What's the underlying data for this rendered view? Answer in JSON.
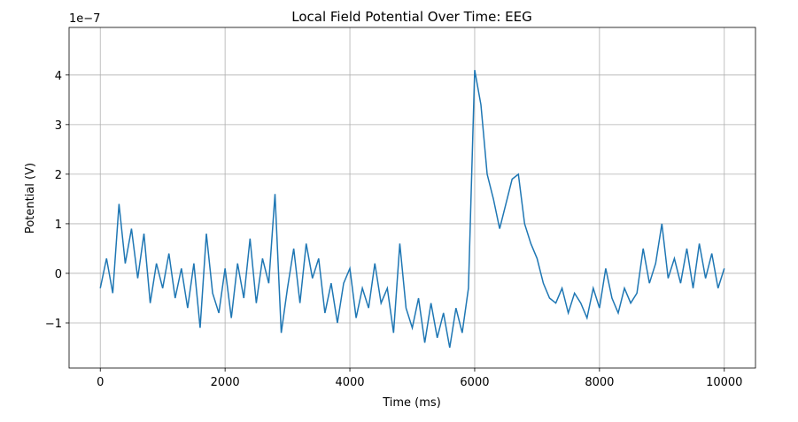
{
  "chart_data": {
    "type": "line",
    "title": "Local Field Potential Over Time: EEG",
    "x_label": "Time (ms)",
    "y_label": "Potential (V)",
    "y_offset_label": "1e−7",
    "x": [
      0,
      100,
      200,
      300,
      400,
      500,
      600,
      700,
      800,
      900,
      1000,
      1100,
      1200,
      1300,
      1400,
      1500,
      1600,
      1700,
      1800,
      1900,
      2000,
      2100,
      2200,
      2300,
      2400,
      2500,
      2600,
      2700,
      2800,
      2900,
      3000,
      3100,
      3200,
      3300,
      3400,
      3500,
      3600,
      3700,
      3800,
      3900,
      4000,
      4100,
      4200,
      4300,
      4400,
      4500,
      4600,
      4700,
      4800,
      4900,
      5000,
      5100,
      5200,
      5300,
      5400,
      5500,
      5600,
      5700,
      5800,
      5900,
      6000,
      6100,
      6200,
      6300,
      6400,
      6500,
      6600,
      6700,
      6800,
      6900,
      7000,
      7100,
      7200,
      7300,
      7400,
      7500,
      7600,
      7700,
      7800,
      7900,
      8000,
      8100,
      8200,
      8300,
      8400,
      8500,
      8600,
      8700,
      8800,
      8900,
      9000,
      9100,
      9200,
      9300,
      9400,
      9500,
      9600,
      9700,
      9800,
      9900,
      10000
    ],
    "series": [
      {
        "name": "EEG",
        "color": "#1f77b4",
        "values": [
          -0.3,
          0.3,
          -0.4,
          1.4,
          0.2,
          0.9,
          -0.1,
          0.8,
          -0.6,
          0.2,
          -0.3,
          0.4,
          -0.5,
          0.1,
          -0.7,
          0.2,
          -1.1,
          0.8,
          -0.4,
          -0.8,
          0.1,
          -0.9,
          0.2,
          -0.5,
          0.7,
          -0.6,
          0.3,
          -0.2,
          1.6,
          -1.2,
          -0.3,
          0.5,
          -0.6,
          0.6,
          -0.1,
          0.3,
          -0.8,
          -0.2,
          -1.0,
          -0.2,
          0.1,
          -0.9,
          -0.3,
          -0.7,
          0.2,
          -0.6,
          -0.3,
          -1.2,
          0.6,
          -0.7,
          -1.1,
          -0.5,
          -1.4,
          -0.6,
          -1.3,
          -0.8,
          -1.5,
          -0.7,
          -1.2,
          -0.3,
          4.1,
          3.4,
          2.0,
          1.5,
          0.9,
          1.4,
          1.9,
          2.0,
          1.0,
          0.6,
          0.3,
          -0.2,
          -0.5,
          -0.6,
          -0.3,
          -0.8,
          -0.4,
          -0.6,
          -0.9,
          -0.3,
          -0.7,
          0.1,
          -0.5,
          -0.8,
          -0.3,
          -0.6,
          -0.4,
          0.5,
          -0.2,
          0.2,
          1.0,
          -0.1,
          0.3,
          -0.2,
          0.5,
          -0.3,
          0.6,
          -0.1,
          0.4,
          -0.3,
          0.1
        ]
      }
    ],
    "xlim": [
      -500,
      10500
    ],
    "ylim": [
      -1.91,
      4.96
    ],
    "xticks": [
      0,
      2000,
      4000,
      6000,
      8000,
      10000
    ],
    "yticks": [
      {
        "value": -1,
        "label": "−1"
      },
      0,
      1,
      2,
      3,
      4
    ],
    "grid": true
  }
}
